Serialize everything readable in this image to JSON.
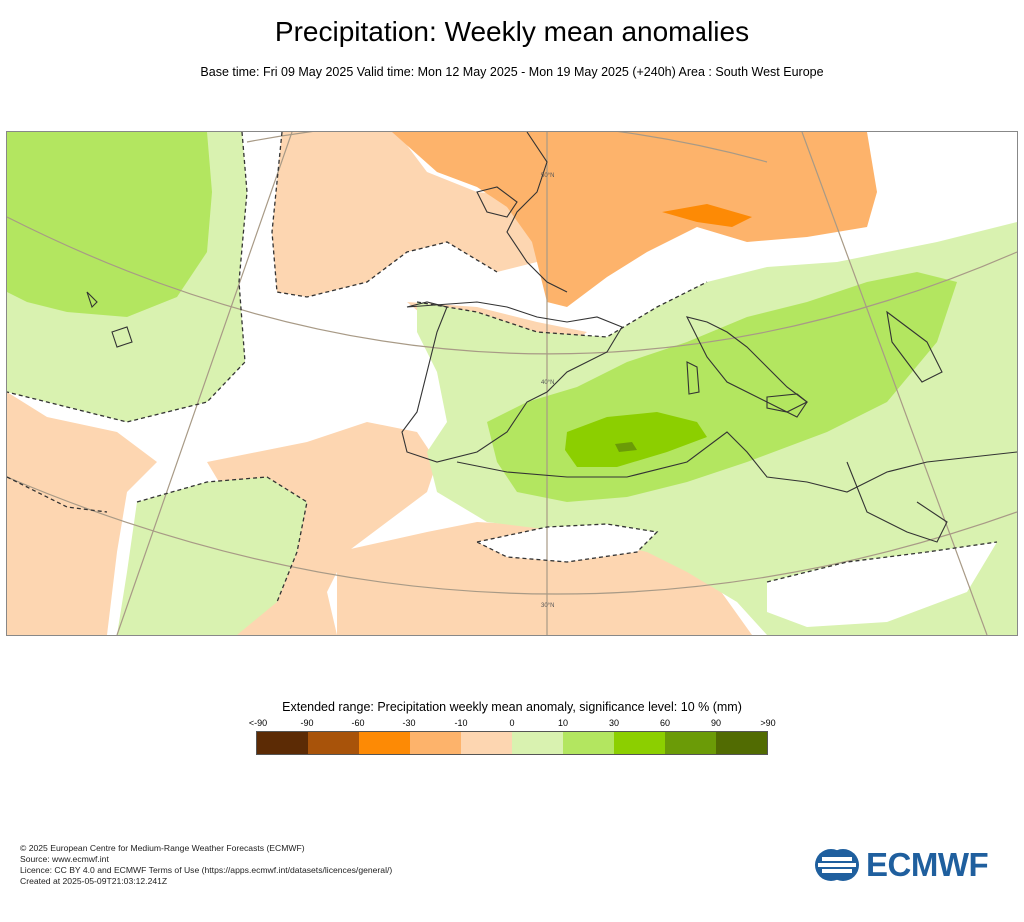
{
  "title": "Precipitation: Weekly mean anomalies",
  "subtitle": "Base time: Fri 09 May 2025 Valid time: Mon 12 May 2025 - Mon 19 May 2025 (+240h) Area : South West Europe",
  "map": {
    "graticule_labels": [
      "50°N",
      "40°N",
      "30°N"
    ]
  },
  "legend": {
    "title": "Extended range: Precipitation weekly mean anomaly, significance level: 10 % (mm)",
    "ticks": [
      "<-90",
      "-90",
      "-60",
      "-30",
      "-10",
      "0",
      "10",
      "30",
      "60",
      "90",
      ">90"
    ],
    "colors": [
      "#5c2b05",
      "#a8530a",
      "#fd8a05",
      "#fdb36b",
      "#fdd6b1",
      "#d9f2b0",
      "#b3e660",
      "#8ccf00",
      "#6b9b07",
      "#516b02"
    ]
  },
  "footer": {
    "line1": "© 2025 European Centre for Medium-Range Weather Forecasts (ECMWF)",
    "line2": "Source: www.ecmwf.int",
    "line3": "Licence: CC BY 4.0 and ECMWF Terms of Use (https://apps.ecmwf.int/datasets/licences/general/)",
    "line4": "Created at 2025-05-09T21:03:12.241Z"
  },
  "logo_text": "ECMWF"
}
